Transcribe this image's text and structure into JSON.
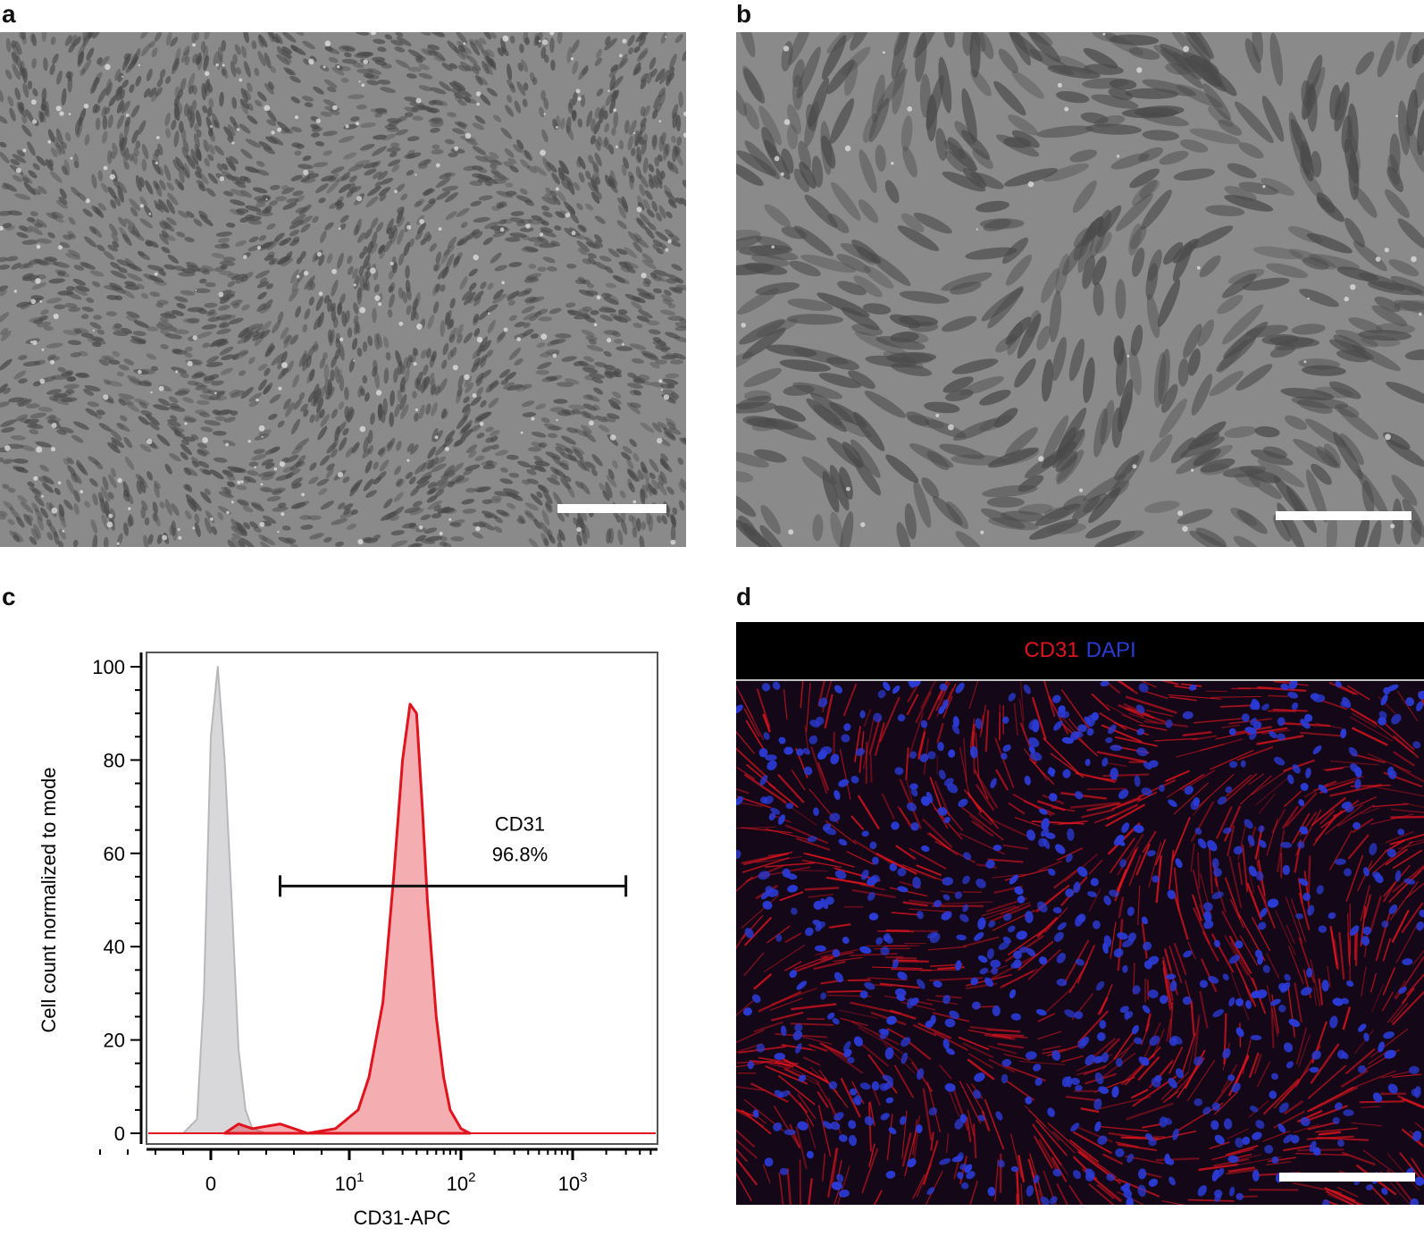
{
  "panels": {
    "a": {
      "letter": "a"
    },
    "b": {
      "letter": "b"
    },
    "c": {
      "letter": "c"
    },
    "d": {
      "letter": "d",
      "stain_labels": [
        {
          "text": "CD31",
          "color": "#e0141e"
        },
        {
          "text": "DAPI",
          "color": "#2b3bd6"
        }
      ]
    }
  },
  "colors": {
    "phase_background": "#8a8a8a",
    "fluor_background": "#140818",
    "cd31_red": "#e0141e",
    "dapi_blue": "#2b3bd6",
    "control_gray": "#b8b8bc"
  },
  "chart_data": {
    "type": "area",
    "title": "",
    "xlabel": "CD31-APC",
    "ylabel": "Cell count normalized to mode",
    "x_scale": "biexponential",
    "xticks": [
      {
        "value": 0,
        "base": "0",
        "exp": ""
      },
      {
        "value": 10,
        "base": "10",
        "exp": "1"
      },
      {
        "value": 100,
        "base": "10",
        "exp": "2"
      },
      {
        "value": 1000,
        "base": "10",
        "exp": "3"
      }
    ],
    "ylim": [
      0,
      100
    ],
    "yticks": [
      0,
      20,
      40,
      60,
      80,
      100
    ],
    "grid": false,
    "series": [
      {
        "role": "control",
        "color": "#b8b8bc",
        "x": [
          -2,
          -1,
          -0.5,
          0,
          0.5,
          1,
          1.5,
          2,
          2.5,
          3,
          4,
          5,
          6
        ],
        "y": [
          0,
          3,
          30,
          85,
          100,
          80,
          50,
          18,
          5,
          1,
          0,
          0,
          0
        ]
      },
      {
        "role": "cd31",
        "color": "#e0141e",
        "x": [
          1,
          2,
          3,
          5,
          7,
          9,
          12,
          15,
          20,
          25,
          30,
          35,
          40,
          45,
          50,
          60,
          70,
          80,
          100,
          120
        ],
        "y": [
          0,
          2,
          1,
          2,
          0,
          1,
          5,
          12,
          28,
          55,
          80,
          92,
          90,
          70,
          50,
          25,
          12,
          5,
          1,
          0
        ]
      }
    ],
    "gate": {
      "label": "CD31",
      "percent": "96.8%",
      "x_start": 5,
      "x_end": 3000,
      "y": 53
    }
  }
}
